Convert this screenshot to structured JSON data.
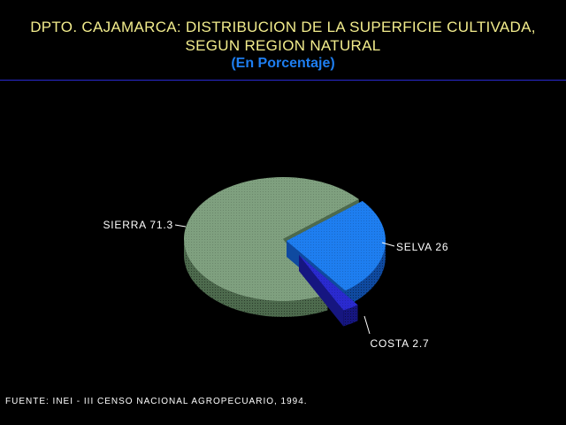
{
  "title": {
    "line1": "DPTO. CAJAMARCA: DISTRIBUCION DE LA SUPERFICIE CULTIVADA,",
    "line2": "SEGUN REGION NATURAL",
    "subtitle": "(En Porcentaje)"
  },
  "source": "FUENTE: INEI - III CENSO NACIONAL AGROPECUARIO, 1994.",
  "colors": {
    "background": "#000000",
    "title": "#f2ec8c",
    "subtitle": "#1e7ef0",
    "rule": "#2a2ad0",
    "label": "#ffffff"
  },
  "chart_data": {
    "type": "pie",
    "style": "3d-exploded",
    "slices": [
      {
        "name": "SIERRA",
        "value": 71.3,
        "label": "SIERRA 71.3",
        "color": "#7fa07f",
        "side_color": "#4d6a4d"
      },
      {
        "name": "SELVA",
        "value": 26,
        "label": "SELVA 26",
        "color": "#1e7ef0",
        "side_color": "#0f4aa0"
      },
      {
        "name": "COSTA",
        "value": 2.7,
        "label": "COSTA 2.7",
        "color": "#2a2ad0",
        "side_color": "#161680"
      }
    ]
  }
}
